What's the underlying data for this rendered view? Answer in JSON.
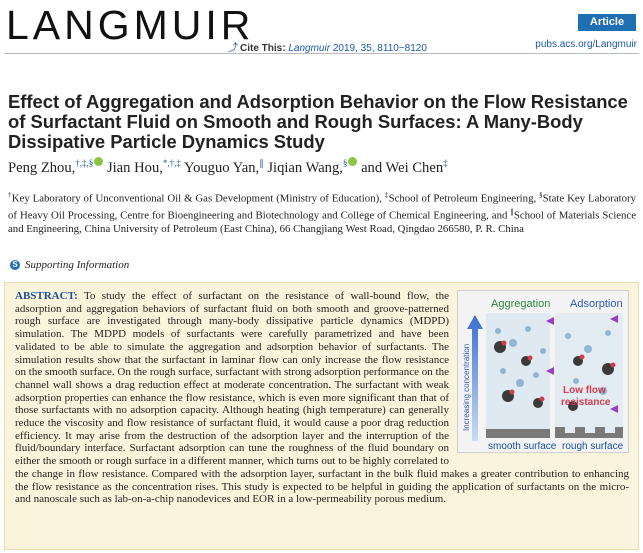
{
  "header": {
    "journal": "LANGMUIR",
    "cite_label": "Cite This:",
    "cite_journal": "Langmuir",
    "cite_rest": "2019, 35, 8110−8120",
    "badge": "Article",
    "pubs_link": "pubs.acs.org/Langmuir"
  },
  "title": "Effect of Aggregation and Adsorption Behavior on the Flow Resistance of Surfactant Fluid on Smooth and Rough Surfaces: A Many-Body Dissipative Particle Dynamics Study",
  "authors": [
    {
      "name": "Peng Zhou,",
      "marks": "†,‡,§",
      "orcid": true
    },
    {
      "name": "Jian Hou,",
      "marks": "*,†,‡",
      "orcid": false
    },
    {
      "name": "Youguo Yan,",
      "marks": "∥",
      "orcid": false
    },
    {
      "name": "Jiqian Wang,",
      "marks": "§",
      "orcid": true
    },
    {
      "name": "and Wei Chen",
      "marks": "‡",
      "orcid": false
    }
  ],
  "affiliations": [
    {
      "mark": "†",
      "text": "Key Laboratory of Unconventional Oil & Gas Development (Ministry of Education), "
    },
    {
      "mark": "‡",
      "text": "School of Petroleum Engineering, "
    },
    {
      "mark": "§",
      "text": "State Key Laboratory of Heavy Oil Processing, Centre for Bioengineering and Biotechnology and College of Chemical Engineering, and "
    },
    {
      "mark": "∥",
      "text": "School of Materials Science and Engineering, China University of Petroleum (East China), 66 Changjiang West Road, Qingdao 266580, P. R. China"
    }
  ],
  "supporting_information": "Supporting Information",
  "abstract": {
    "label": "ABSTRACT:",
    "text": "To study the effect of surfactant on the resistance of wall-bound flow, the adsorption and aggregation behaviors of surfactant fluid on both smooth and groove-patterned rough surface are investigated through many-body dissipative particle dynamics (MDPD) simulation. The MDPD models of surfactants were carefully parametrized and have been validated to be able to simulate the aggregation and adsorption behavior of surfactants. The simulation results show that the surfactant in laminar flow can only increase the flow resistance on the smooth surface. On the rough surface, surfactant with strong adsorption performance on the channel wall shows a drag reduction effect at moderate concentration. The surfactant with weak adsorption properties can enhance the flow resistance, which is even more significant than that of those surfactants with no adsorption capacity. Although heating (high temperature) can generally reduce the viscosity and flow resistance of surfactant fluid, it would cause a poor drag reduction efficiency. It may arise from the destruction of the adsorption layer and the interruption of the fluid/boundary interface. Surfactant adsorption can tune the roughness of the fluid boundary on either the smooth or rough surface in a different manner, which turns out to be highly correlated to the change in flow resistance. Compared with the adsorption layer, surfactant in the bulk fluid makes a greater contribution to enhancing the flow resistance as the concentration rises. This study is expected to be helpful in guiding the application of surfactants on the micro- and nanoscale such as lab-on-a-chip nanodevices and EOR in a low-permeability porous medium."
  },
  "toc_graphic": {
    "aggregation": "Aggregation",
    "adsorption": "Adsorption",
    "concentration": "Increasing concentration",
    "low_flow": "Low flow",
    "resistance": "resistance",
    "smooth_surface": "smooth surface",
    "rough_surface": "rough surface"
  }
}
